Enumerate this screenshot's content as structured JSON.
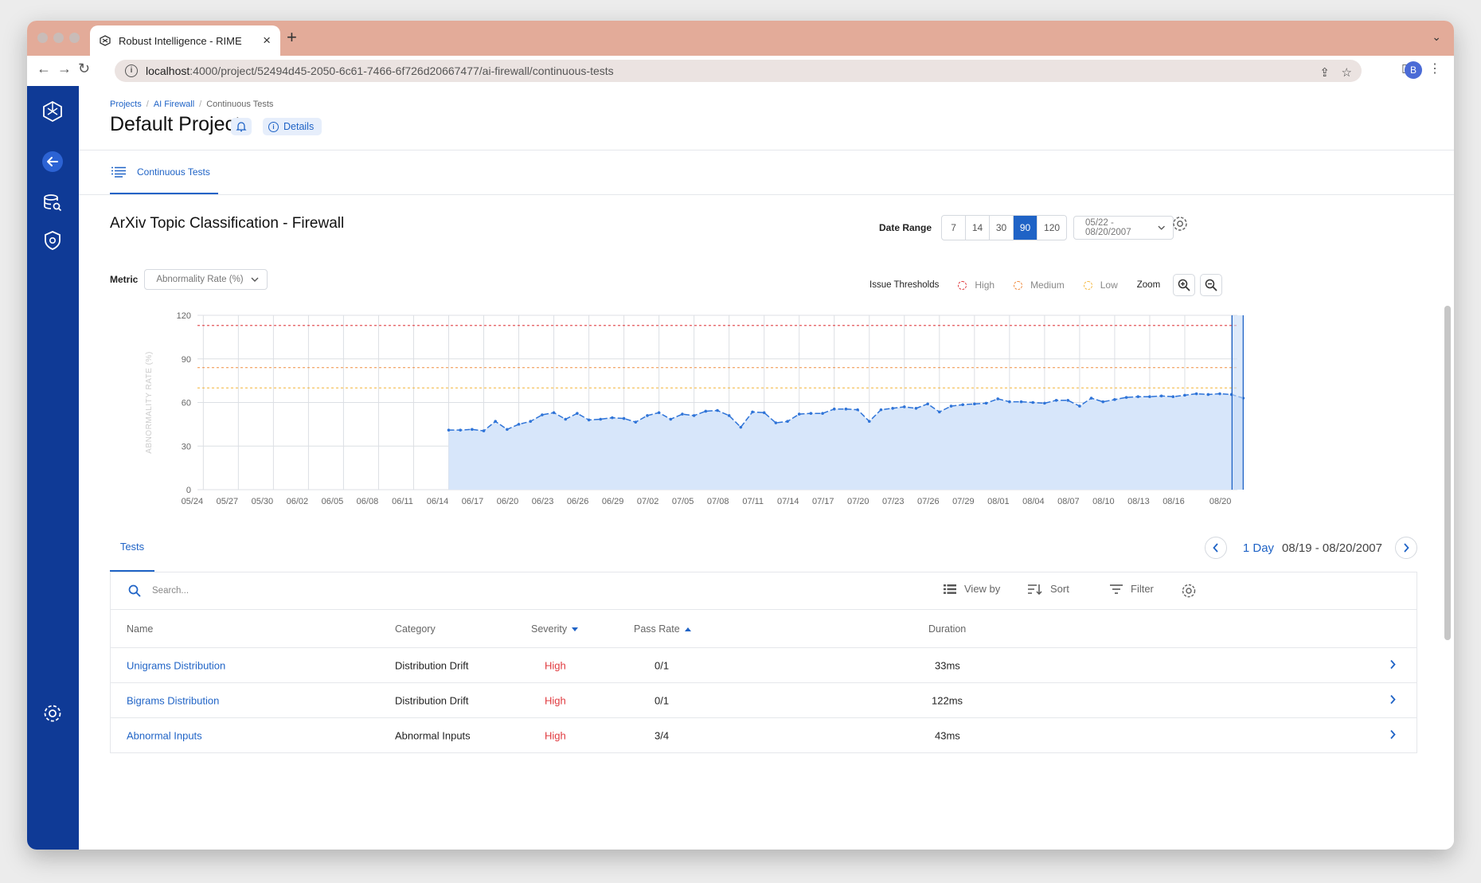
{
  "browser": {
    "tab_title": "Robust Intelligence - RIME",
    "url_host": "localhost",
    "url_rest": ":4000/project/52494d45-2050-6c61-7466-6f726d20667477/ai-firewall/continuous-tests",
    "avatar_letter": "B"
  },
  "breadcrumb": [
    "Projects",
    "AI Firewall",
    "Continuous Tests"
  ],
  "header": {
    "title": "Default Project",
    "details_label": "Details"
  },
  "subnav": {
    "active_tab": "Continuous Tests"
  },
  "section": {
    "title": "ArXiv Topic Classification - Firewall"
  },
  "date_range": {
    "label": "Date Range",
    "options": [
      "7",
      "14",
      "30",
      "90",
      "120"
    ],
    "selected": "90",
    "range_value": "05/22 - 08/20/2007"
  },
  "metric": {
    "label": "Metric",
    "value": "Abnormality Rate (%)"
  },
  "thresholds": {
    "label": "Issue Thresholds",
    "items": [
      {
        "name": "High",
        "color": "#e0393e"
      },
      {
        "name": "Medium",
        "color": "#f08a3c"
      },
      {
        "name": "Low",
        "color": "#f5b942"
      }
    ],
    "zoom_label": "Zoom"
  },
  "chart_data": {
    "type": "area",
    "ylabel": "ABNORMALITY RATE (%)",
    "ylim": [
      0,
      120
    ],
    "yticks": [
      0,
      30,
      60,
      90,
      120
    ],
    "xticks": [
      "05/24",
      "05/27",
      "05/30",
      "06/02",
      "06/05",
      "06/08",
      "06/11",
      "06/14",
      "06/17",
      "06/20",
      "06/23",
      "06/26",
      "06/29",
      "07/02",
      "07/05",
      "07/08",
      "07/11",
      "07/14",
      "07/17",
      "07/20",
      "07/23",
      "07/26",
      "07/29",
      "08/01",
      "08/04",
      "08/07",
      "08/10",
      "08/13",
      "08/16",
      "08/20"
    ],
    "x_start": "05/24",
    "x_end": "08/21",
    "data_start": "06/14",
    "thresholds": {
      "high": 113,
      "medium": 84,
      "low": 70
    },
    "series": [
      {
        "values": [
          41,
          41,
          41.5,
          40.5,
          47,
          41.5,
          45,
          47,
          51.5,
          53,
          48.5,
          52.5,
          48,
          48.5,
          49.5,
          49,
          46.5,
          51,
          53,
          48.5,
          52,
          51,
          54,
          54.5,
          51,
          43,
          53.5,
          53,
          46,
          47,
          52,
          52.5,
          52.5,
          55.5,
          55.5,
          55,
          47,
          55,
          56,
          57,
          56,
          59,
          53.5,
          57.5,
          58.5,
          59,
          59.5,
          62.5,
          60.5,
          60.5,
          60,
          59.5,
          61.5,
          61.5,
          57.5,
          63,
          60.5,
          62,
          63.5,
          64,
          64,
          64.5,
          64,
          65,
          66,
          65.5,
          66,
          65.5,
          63
        ]
      }
    ]
  },
  "tests": {
    "tab_label": "Tests",
    "period_label": "1 Day",
    "period_range": "08/19 - 08/20/2007",
    "search_placeholder": "Search...",
    "view_by": "View by",
    "sort": "Sort",
    "filter": "Filter",
    "columns": [
      "Name",
      "Category",
      "Severity",
      "Pass Rate",
      "Duration"
    ],
    "rows": [
      {
        "name": "Unigrams Distribution",
        "category": "Distribution Drift",
        "severity": "High",
        "pass_rate": "0/1",
        "duration": "33ms"
      },
      {
        "name": "Bigrams Distribution",
        "category": "Distribution Drift",
        "severity": "High",
        "pass_rate": "0/1",
        "duration": "122ms"
      },
      {
        "name": "Abnormal Inputs",
        "category": "Abnormal Inputs",
        "severity": "High",
        "pass_rate": "3/4",
        "duration": "43ms"
      }
    ]
  }
}
